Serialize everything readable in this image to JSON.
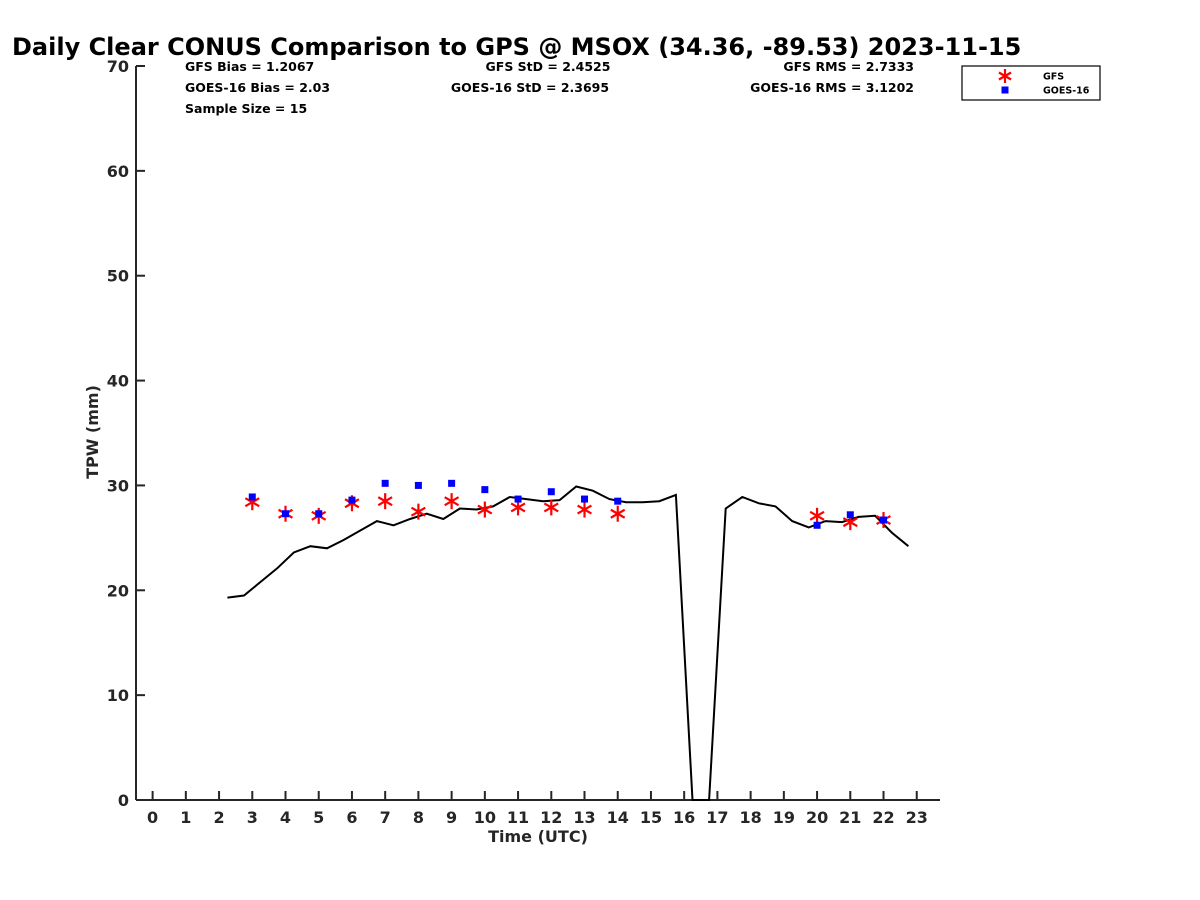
{
  "chart_data": {
    "type": "line",
    "title": "Daily Clear CONUS Comparison to GPS @ MSOX (34.36, -89.53) 2023-11-15",
    "xlabel": "Time (UTC)",
    "ylabel": "TPW (mm)",
    "xlim": [
      -0.5,
      23.7
    ],
    "ylim": [
      0,
      70
    ],
    "xticks": [
      "0",
      "1",
      "2",
      "3",
      "4",
      "5",
      "6",
      "7",
      "8",
      "9",
      "10",
      "11",
      "12",
      "13",
      "14",
      "15",
      "16",
      "17",
      "18",
      "19",
      "20",
      "21",
      "22",
      "23"
    ],
    "yticks": [
      "0",
      "10",
      "20",
      "30",
      "40",
      "50",
      "60",
      "70"
    ],
    "grid": false,
    "legend_position": "top-right",
    "stats": {
      "gfs_bias": "GFS Bias = 1.2067",
      "goes_bias": "GOES-16 Bias = 2.03",
      "sample_size": "Sample Size = 15",
      "gfs_std": "GFS StD = 2.4525",
      "goes_std": "GOES-16 StD = 2.3695",
      "gfs_rms": "GFS RMS = 2.7333",
      "goes_rms": "GOES-16 RMS = 3.1202"
    },
    "series": [
      {
        "name": "GPS",
        "kind": "line",
        "color": "#000000",
        "x": [
          2.25,
          2.75,
          3.25,
          3.75,
          4.25,
          4.75,
          5.25,
          5.75,
          6.25,
          6.75,
          7.25,
          7.75,
          8.25,
          8.75,
          9.25,
          9.75,
          10.25,
          10.75,
          11.25,
          11.75,
          12.25,
          12.75,
          13.25,
          13.75,
          14.25,
          14.75,
          15.25,
          15.75,
          16.25,
          16.5,
          16.75,
          17.25,
          17.75,
          18.25,
          18.75,
          19.25,
          19.75,
          20.25,
          20.75,
          21.25,
          21.75,
          22.25,
          22.75
        ],
        "y": [
          19.3,
          19.5,
          20.8,
          22.1,
          23.6,
          24.2,
          24.0,
          24.8,
          25.7,
          26.6,
          26.2,
          26.8,
          27.3,
          26.8,
          27.8,
          27.7,
          28.0,
          28.9,
          28.7,
          28.5,
          28.6,
          29.9,
          29.5,
          28.7,
          28.4,
          28.4,
          28.5,
          29.1,
          0.0,
          0.0,
          0.0,
          27.8,
          28.9,
          28.3,
          28.0,
          26.6,
          26.0,
          26.6,
          26.5,
          27.0,
          27.1,
          25.5,
          24.2
        ]
      },
      {
        "name": "GFS",
        "kind": "marker",
        "marker": "asterisk",
        "color": "#ff0000",
        "x": [
          3,
          4,
          5,
          6,
          7,
          8,
          9,
          10,
          11,
          12,
          13,
          14,
          20,
          21,
          22
        ],
        "y": [
          28.4,
          27.3,
          27.1,
          28.3,
          28.5,
          27.5,
          28.5,
          27.7,
          27.9,
          27.9,
          27.7,
          27.3,
          27.1,
          26.5,
          26.7
        ]
      },
      {
        "name": "GOES-16",
        "kind": "marker",
        "marker": "square",
        "color": "#0000ff",
        "x": [
          3,
          4,
          5,
          6,
          7,
          8,
          9,
          10,
          11,
          12,
          13,
          14,
          20,
          21,
          22
        ],
        "y": [
          28.9,
          27.3,
          27.3,
          28.6,
          30.2,
          30.0,
          30.2,
          29.6,
          28.7,
          29.4,
          28.7,
          28.5,
          26.2,
          27.2,
          26.7
        ]
      }
    ],
    "legend": [
      {
        "label": "GFS",
        "marker": "asterisk",
        "color": "#ff0000"
      },
      {
        "label": "GOES-16",
        "marker": "square",
        "color": "#0000ff"
      }
    ]
  }
}
